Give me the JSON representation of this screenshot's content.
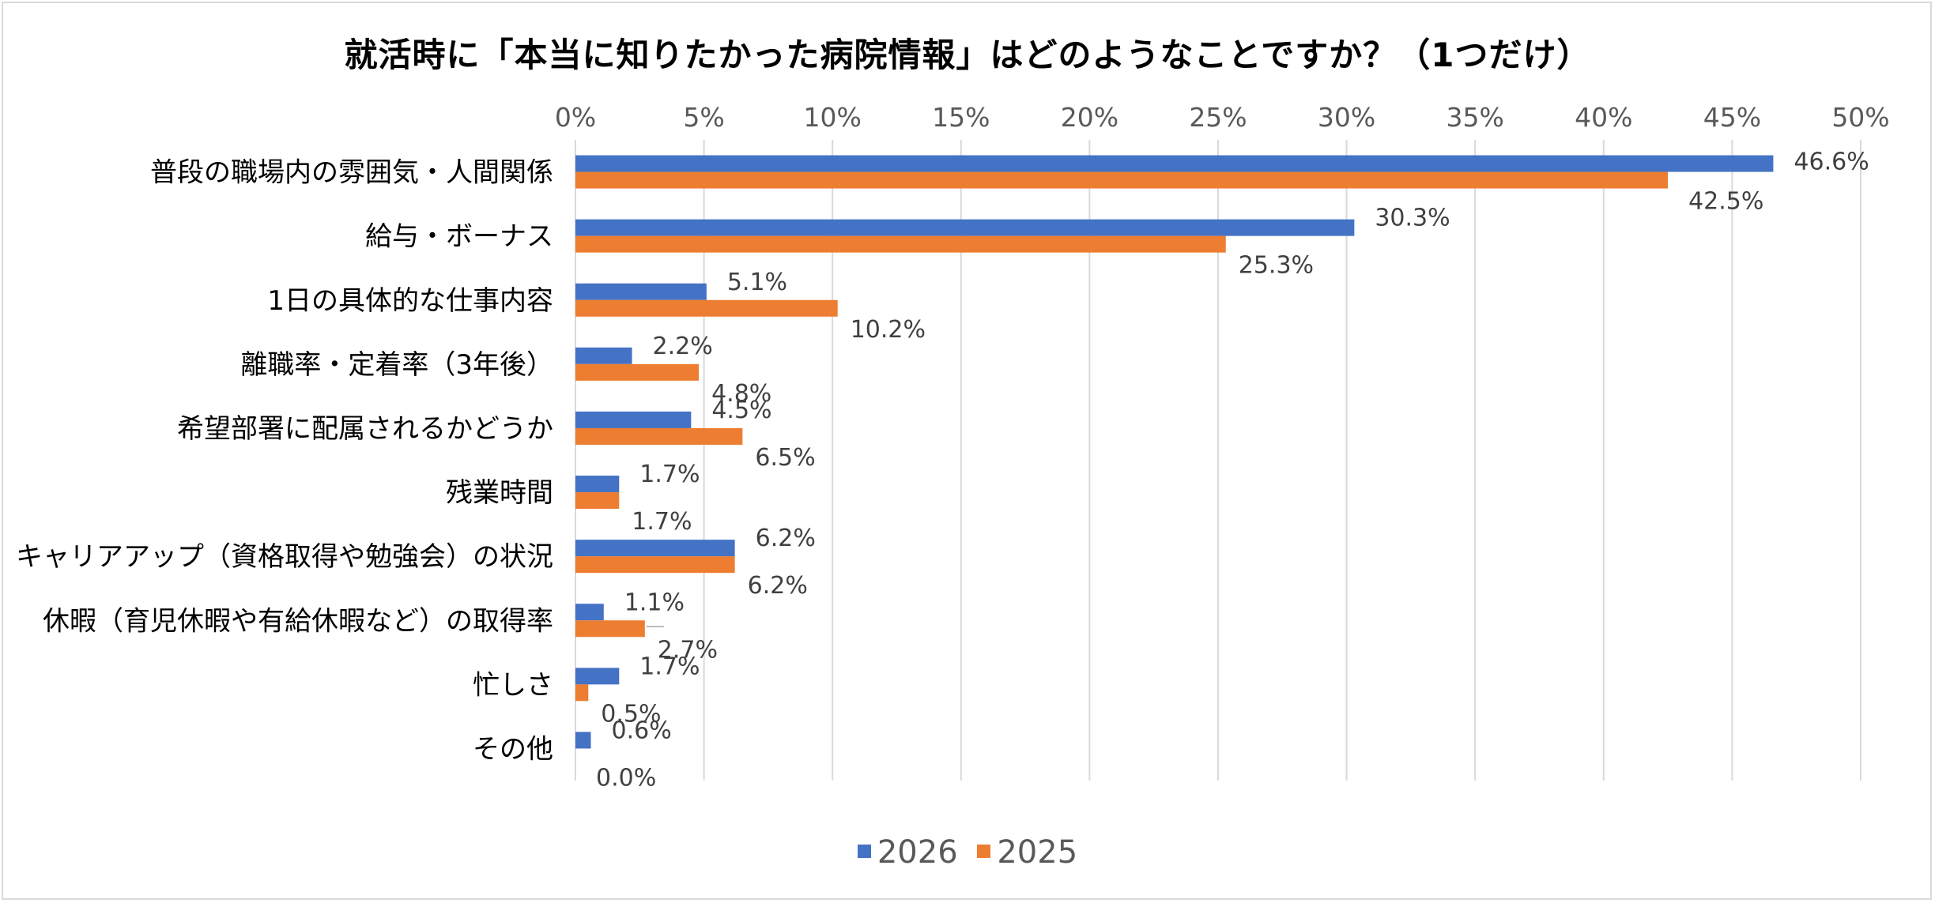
{
  "chart_data": {
    "type": "bar",
    "orientation": "horizontal",
    "title": "就活時に「本当に知りたかった病院情報」はどのようなことですか？（1つだけ）",
    "categories": [
      "普段の職場内の雰囲気・人間関係",
      "給与・ボーナス",
      "1日の具体的な仕事内容",
      "離職率・定着率（3年後）",
      "希望部署に配属されるかどうか",
      "残業時間",
      "キャリアアップ（資格取得や勉強会）の状況",
      "休暇（育児休暇や有給休暇など）の取得率",
      "忙しさ",
      "その他"
    ],
    "series": [
      {
        "name": "2026",
        "color": "#4472c4",
        "values": [
          46.6,
          30.3,
          5.1,
          2.2,
          4.5,
          1.7,
          6.2,
          1.1,
          1.7,
          0.6
        ],
        "labels": [
          "46.6%",
          "30.3%",
          "5.1%",
          "2.2%",
          "4.5%",
          "1.7%",
          "6.2%",
          "1.1%",
          "1.7%",
          "0.6%"
        ]
      },
      {
        "name": "2025",
        "color": "#ed7d31",
        "values": [
          42.5,
          25.3,
          10.2,
          4.8,
          6.5,
          1.7,
          6.2,
          2.7,
          0.5,
          0.0
        ],
        "labels": [
          "42.5%",
          "25.3%",
          "10.2%",
          "4.8%",
          "6.5%",
          "1.7%",
          "6.2%",
          "2.7%",
          "0.5%",
          "0.0%"
        ]
      }
    ],
    "xlim": [
      0,
      50
    ],
    "xticks": [
      "0%",
      "5%",
      "10%",
      "15%",
      "20%",
      "25%",
      "30%",
      "35%",
      "40%",
      "45%",
      "50%"
    ],
    "xaxis_position": "top",
    "grid": true,
    "legend_position": "bottom"
  }
}
